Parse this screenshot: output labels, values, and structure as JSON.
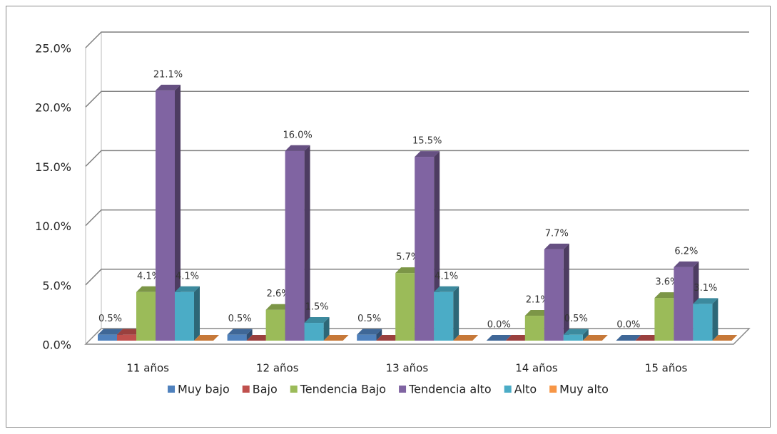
{
  "chart_data": {
    "type": "bar3d",
    "categories": [
      "11 años",
      "12 años",
      "13 años",
      "14 años",
      "15 años"
    ],
    "series": [
      {
        "name": "Muy bajo",
        "color": "#4f81bd",
        "values": [
          0.5,
          0.5,
          0.5,
          0.0,
          0.0
        ],
        "value_labels": [
          "0.5%",
          "0.5%",
          "0.5%",
          "0.0%",
          "0.0%"
        ]
      },
      {
        "name": "Bajo",
        "color": "#c0504d",
        "values": [
          0.5,
          0,
          0,
          0,
          0
        ],
        "value_labels": [
          null,
          null,
          null,
          null,
          null
        ]
      },
      {
        "name": "Tendencia Bajo",
        "color": "#9bbb59",
        "values": [
          4.1,
          2.6,
          5.7,
          2.1,
          3.6
        ],
        "value_labels": [
          "4.1%",
          "2.6%",
          "5.7%",
          "2.1%",
          "3.6%"
        ]
      },
      {
        "name": "Tendencia alto",
        "color": "#8064a2",
        "values": [
          21.1,
          16.0,
          15.5,
          7.7,
          6.2
        ],
        "value_labels": [
          "21.1%",
          "16.0%",
          "15.5%",
          "7.7%",
          "6.2%"
        ]
      },
      {
        "name": "Alto",
        "color": "#4bacc6",
        "values": [
          4.1,
          1.5,
          4.1,
          0.5,
          3.1
        ],
        "value_labels": [
          "4.1%",
          "1.5%",
          "4.1%",
          "0.5%",
          "3.1%"
        ]
      },
      {
        "name": "Muy alto",
        "color": "#f79646",
        "values": [
          0,
          0,
          0,
          0,
          0
        ],
        "value_labels": [
          null,
          null,
          null,
          null,
          null
        ]
      }
    ],
    "ylim": [
      0,
      25
    ],
    "yticks": [
      {
        "value": 0,
        "label": "0.0%"
      },
      {
        "value": 5,
        "label": "5.0%"
      },
      {
        "value": 10,
        "label": "10.0%"
      },
      {
        "value": 15,
        "label": "15.0%"
      },
      {
        "value": 20,
        "label": "20.0%"
      },
      {
        "value": 25,
        "label": "25.0%"
      }
    ],
    "grid": true,
    "legend": "bottom"
  }
}
